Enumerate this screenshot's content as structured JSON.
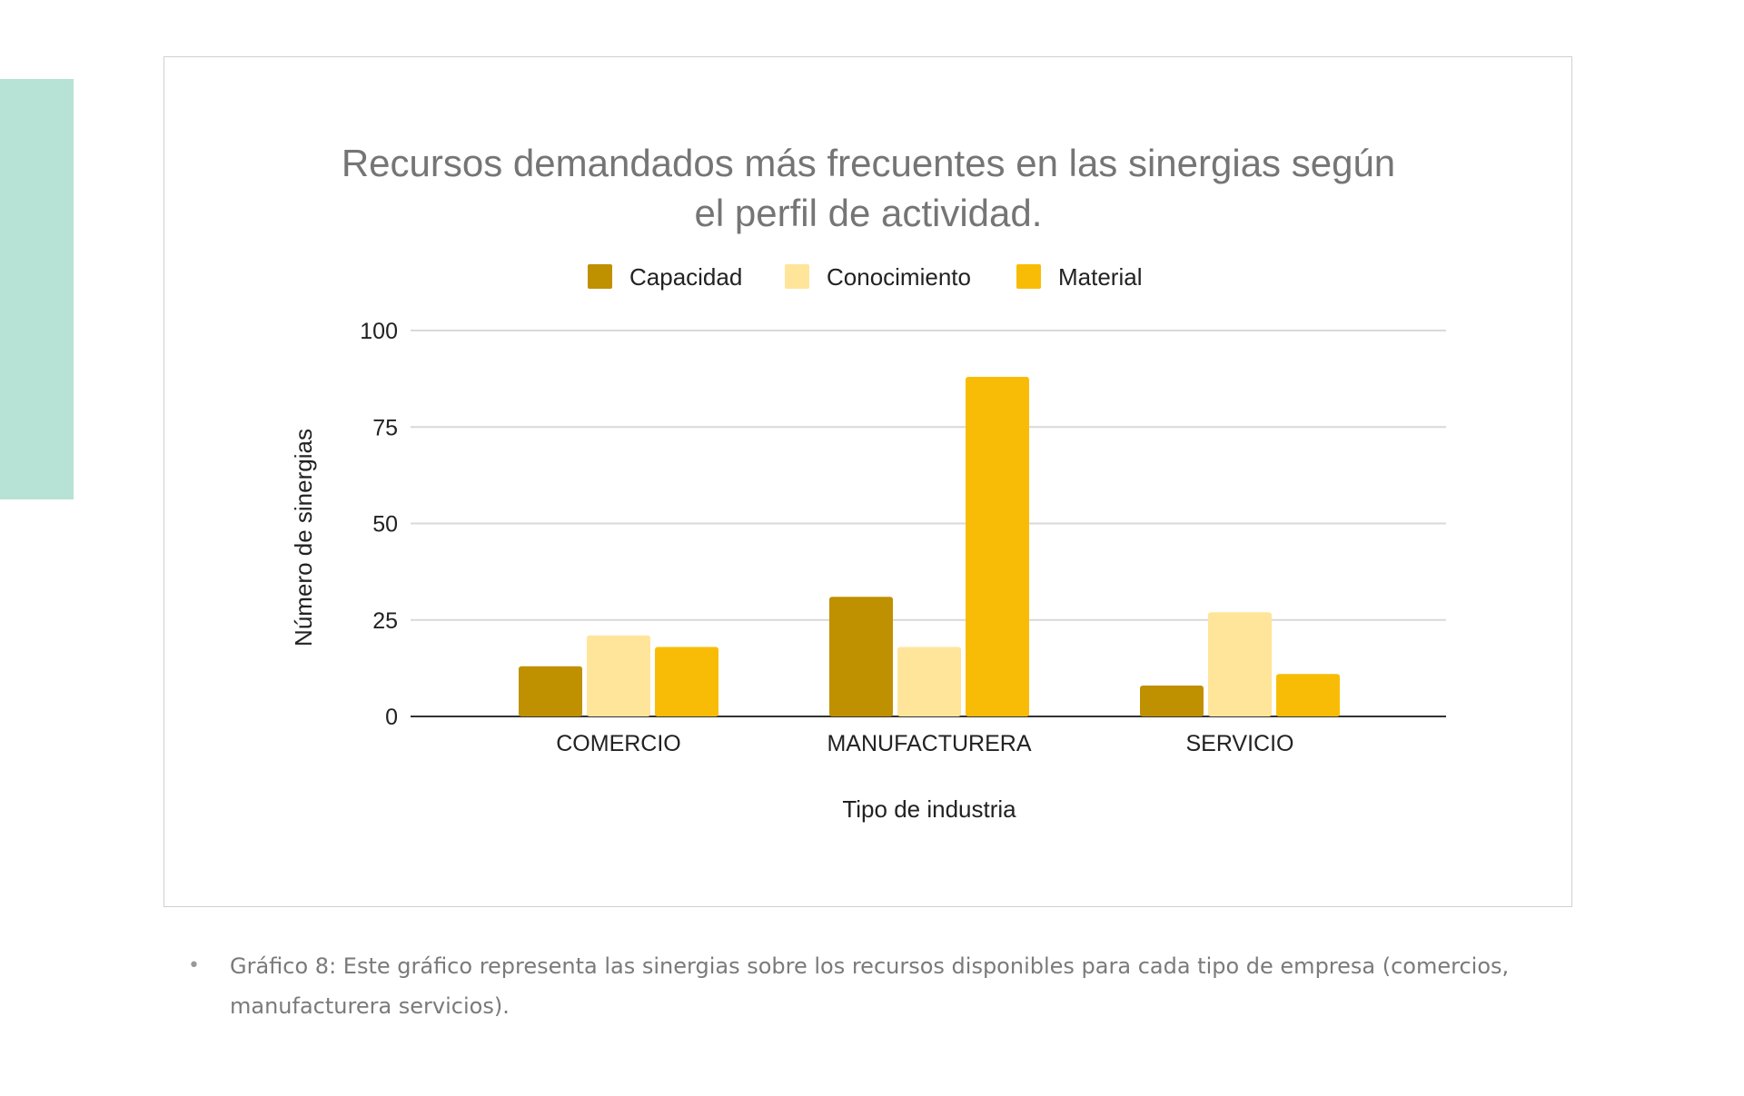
{
  "chart_data": {
    "type": "bar",
    "title_lines": [
      "Recursos demandados más frecuentes en las sinergias según",
      "el perfil de actividad."
    ],
    "categories": [
      "COMERCIO",
      "MANUFACTURERA",
      "SERVICIO"
    ],
    "series": [
      {
        "name": "Capacidad",
        "color": "#bf9000",
        "values": [
          13,
          31,
          8
        ]
      },
      {
        "name": "Conocimiento",
        "color": "#ffe599",
        "values": [
          21,
          18,
          27
        ]
      },
      {
        "name": "Material",
        "color": "#f9bc06",
        "values": [
          18,
          88,
          11
        ]
      }
    ],
    "xlabel": "Tipo de industria",
    "ylabel": "Número de sinergias",
    "ylim": [
      0,
      100
    ],
    "yticks": [
      "0",
      "25",
      "50",
      "75",
      "100"
    ],
    "grid": true,
    "legend_position": "top"
  },
  "caption": {
    "bullet": "•",
    "text": "Gráfico 8: Este gráfico representa las sinergias sobre los recursos disponibles para cada tipo de empresa (comercios, manufacturera servicios)."
  }
}
